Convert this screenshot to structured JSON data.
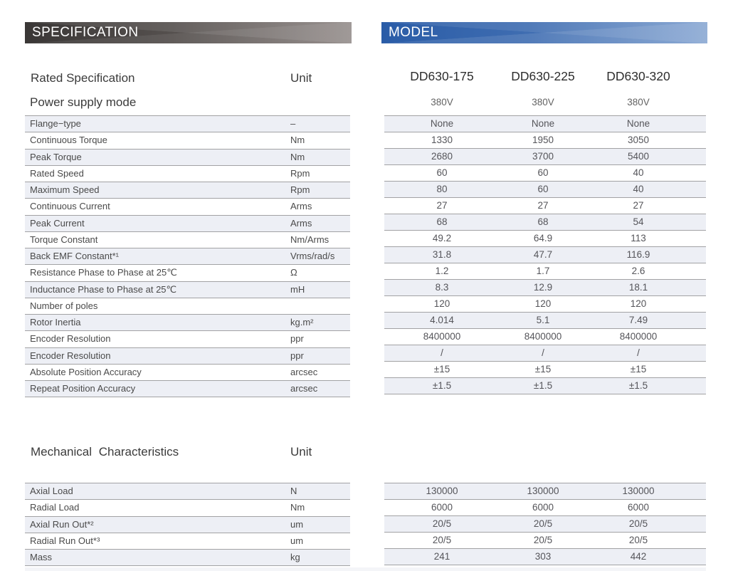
{
  "banners": {
    "specification": "SPECIFICATION",
    "model": "MODEL"
  },
  "colors": {
    "banner_dark_left": "#3a3736",
    "banner_dark_right": "#8f8785",
    "banner_blue_left": "#2a5ca7",
    "banner_blue_right": "#7fa0cf",
    "row_tint": "#edeff5",
    "row_line": "#a2a2a4",
    "text_dark": "#3b3b3b"
  },
  "rated": {
    "title": "Rated Specification",
    "unit_label": "Unit",
    "power_label": "Power supply mode",
    "models": [
      "DD630-175",
      "DD630-225",
      "DD630-320"
    ],
    "voltages": [
      "380V",
      "380V",
      "380V"
    ],
    "rows": [
      {
        "label": "Flange−type",
        "unit": "–",
        "values": [
          "None",
          "None",
          "None"
        ]
      },
      {
        "label": "Continuous Torque",
        "unit": "Nm",
        "values": [
          "1330",
          "1950",
          "3050"
        ]
      },
      {
        "label": "Peak Torque",
        "unit": "Nm",
        "values": [
          "2680",
          "3700",
          "5400"
        ]
      },
      {
        "label": "Rated Speed",
        "unit": "Rpm",
        "values": [
          "60",
          "60",
          "40"
        ]
      },
      {
        "label": "Maximum Speed",
        "unit": "Rpm",
        "values": [
          "80",
          "60",
          "40"
        ]
      },
      {
        "label": "Continuous Current",
        "unit": "Arms",
        "values": [
          "27",
          "27",
          "27"
        ]
      },
      {
        "label": "Peak Current",
        "unit": "Arms",
        "values": [
          "68",
          "68",
          "54"
        ]
      },
      {
        "label": "Torque Constant",
        "unit": "Nm/Arms",
        "values": [
          "49.2",
          "64.9",
          "113"
        ]
      },
      {
        "label": "Back EMF Constant*¹",
        "unit": "Vrms/rad/s",
        "values": [
          "31.8",
          "47.7",
          "116.9"
        ]
      },
      {
        "label": "Resistance Phase to Phase at 25℃",
        "unit": "Ω",
        "values": [
          "1.2",
          "1.7",
          "2.6"
        ]
      },
      {
        "label": "Inductance Phase to Phase at 25℃",
        "unit": "mH",
        "values": [
          "8.3",
          "12.9",
          "18.1"
        ]
      },
      {
        "label": "Number of poles",
        "unit": "",
        "values": [
          "120",
          "120",
          "120"
        ]
      },
      {
        "label": "Rotor Inertia",
        "unit": "kg.m²",
        "values": [
          "4.014",
          "5.1",
          "7.49"
        ]
      },
      {
        "label": "Encoder Resolution",
        "unit": "ppr",
        "values": [
          "8400000",
          "8400000",
          "8400000"
        ]
      },
      {
        "label": "Encoder Resolution",
        "unit": "ppr",
        "values": [
          "/",
          "/",
          "/"
        ]
      },
      {
        "label": "Absolute Position Accuracy",
        "unit": "arcsec",
        "values": [
          "±15",
          "±15",
          "±15"
        ]
      },
      {
        "label": "Repeat Position Accuracy",
        "unit": "arcsec",
        "values": [
          "±1.5",
          "±1.5",
          "±1.5"
        ]
      }
    ]
  },
  "mech": {
    "title": "Mechanical Characteristics",
    "unit_label": "Unit",
    "rows": [
      {
        "label": "Axial Load",
        "unit": "N",
        "values": [
          "130000",
          "130000",
          "130000"
        ]
      },
      {
        "label": "Radial Load",
        "unit": "Nm",
        "values": [
          "6000",
          "6000",
          "6000"
        ]
      },
      {
        "label": "Axial Run Out*²",
        "unit": "um",
        "values": [
          "20/5",
          "20/5",
          "20/5"
        ]
      },
      {
        "label": "Radial Run Out*³",
        "unit": "um",
        "values": [
          "20/5",
          "20/5",
          "20/5"
        ]
      },
      {
        "label": "Mass",
        "unit": "kg",
        "values": [
          "241",
          "303",
          "442"
        ]
      }
    ]
  }
}
